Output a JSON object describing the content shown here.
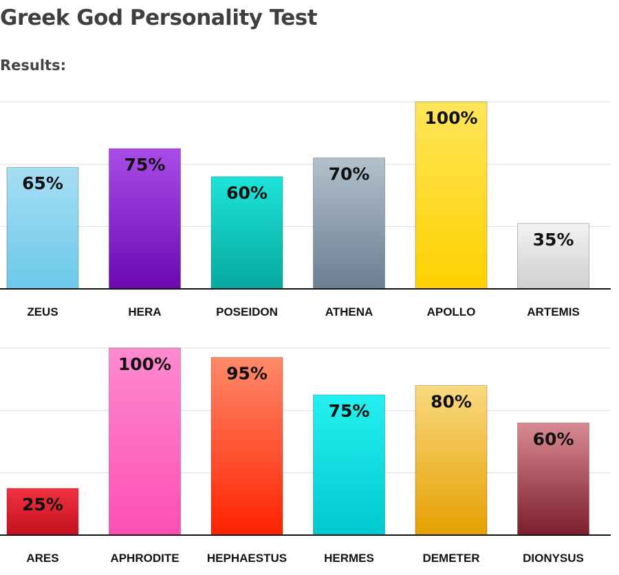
{
  "header": {
    "title": "Greek God Personality Test",
    "results_label": "Results:"
  },
  "chart_data": [
    {
      "type": "bar",
      "categories": [
        "ZEUS",
        "HERA",
        "POSEIDON",
        "ATHENA",
        "APOLLO",
        "ARTEMIS"
      ],
      "values": [
        65,
        75,
        60,
        70,
        100,
        35
      ],
      "value_labels": [
        "65%",
        "75%",
        "60%",
        "70%",
        "100%",
        "35%"
      ],
      "colors": [
        [
          "#a6def4",
          "#6cc8e9"
        ],
        [
          "#a94ce8",
          "#6b08b2"
        ],
        [
          "#1de4d9",
          "#07a99e"
        ],
        [
          "#b3c0cc",
          "#6a7e92"
        ],
        [
          "#ffe55a",
          "#fed100"
        ],
        [
          "#f2f2f2",
          "#cfcfcf"
        ]
      ],
      "ylim": [
        0,
        100
      ],
      "grid": true
    },
    {
      "type": "bar",
      "categories": [
        "ARES",
        "APHRODITE",
        "HEPHAESTUS",
        "HERMES",
        "DEMETER",
        "DIONYSUS"
      ],
      "values": [
        25,
        100,
        95,
        75,
        80,
        60
      ],
      "value_labels": [
        "25%",
        "100%",
        "95%",
        "75%",
        "80%",
        "60%"
      ],
      "colors": [
        [
          "#ef3340",
          "#c4101e"
        ],
        [
          "#ff8ad0",
          "#fd4eb4"
        ],
        [
          "#ff8a6a",
          "#ff2200"
        ],
        [
          "#25f0f0",
          "#00c9cf"
        ],
        [
          "#f9d980",
          "#e4a000"
        ],
        [
          "#d98a93",
          "#7a1e2c"
        ]
      ],
      "ylim": [
        0,
        100
      ],
      "grid": true
    }
  ]
}
